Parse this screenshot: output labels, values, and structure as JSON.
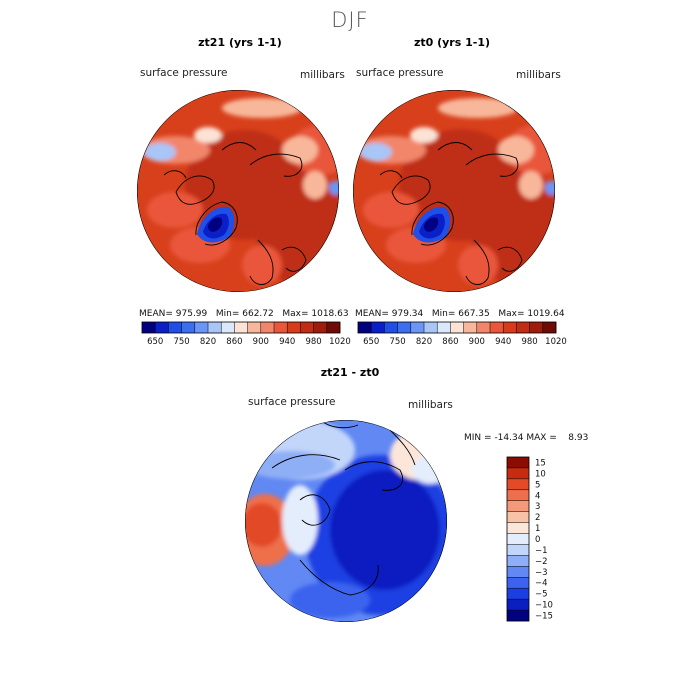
{
  "figure": {
    "title": "DJF"
  },
  "panels": {
    "p1": {
      "title": "zt21 (yrs 1-1)",
      "left_label": "surface pressure",
      "right_label": "millibars",
      "mean_label": "MEAN=",
      "mean": "975.99",
      "min_label": "Min=",
      "min": "662.72",
      "max_label": "Max=",
      "max": "1018.63"
    },
    "p2": {
      "title": "zt0 (yrs 1-1)",
      "left_label": "surface pressure",
      "right_label": "millibars",
      "mean_label": "MEAN=",
      "mean": "979.34",
      "min_label": "Min=",
      "min": "667.35",
      "max_label": "Max=",
      "max": "1019.64"
    },
    "p3": {
      "title": "zt21 - zt0",
      "left_label": "surface pressure",
      "right_label": "millibars",
      "min_label": "MIN =",
      "min": "-14.34",
      "max_label": "MAX =",
      "max": "8.93"
    }
  },
  "colors": {
    "abs_scale": [
      "#000080",
      "#0a1fc7",
      "#1f4fe6",
      "#3c6ff0",
      "#6b96f5",
      "#a8c6f7",
      "#dbe7fb",
      "#fce3d5",
      "#f8b79a",
      "#f2866a",
      "#e9563a",
      "#d83b1a",
      "#c02d14",
      "#9e1c0a",
      "#6e0b04"
    ],
    "diff_scale": [
      "#000080",
      "#0b1ec0",
      "#1a3fe3",
      "#3b63ee",
      "#6188f3",
      "#8eaef6",
      "#c2d6fa",
      "#e4edfc",
      "#fce6da",
      "#f8c2a6",
      "#f49a78",
      "#ee6f4b",
      "#e24a28",
      "#c82c10",
      "#8c0c02"
    ]
  },
  "chart_data": [
    {
      "type": "heatmap",
      "title": "zt21 (yrs 1-1)",
      "subtitle": "DJF",
      "variable": "surface pressure",
      "units": "millibars",
      "projection": "north polar stereographic",
      "stats": {
        "mean": 975.99,
        "min": 662.72,
        "max": 1018.63
      },
      "colorbar_ticks": [
        650,
        750,
        820,
        860,
        900,
        940,
        980,
        1020
      ],
      "colorbar_tick_labels": [
        "650",
        "750",
        "820",
        "860",
        "900",
        "940",
        "980",
        "1020"
      ]
    },
    {
      "type": "heatmap",
      "title": "zt0 (yrs 1-1)",
      "subtitle": "DJF",
      "variable": "surface pressure",
      "units": "millibars",
      "projection": "north polar stereographic",
      "stats": {
        "mean": 979.34,
        "min": 667.35,
        "max": 1019.64
      },
      "colorbar_ticks": [
        650,
        750,
        820,
        860,
        900,
        940,
        980,
        1020
      ],
      "colorbar_tick_labels": [
        "650",
        "750",
        "820",
        "860",
        "900",
        "940",
        "980",
        "1020"
      ]
    },
    {
      "type": "heatmap",
      "title": "zt21 - zt0",
      "variable": "surface pressure",
      "units": "millibars",
      "projection": "north polar stereographic",
      "stats": {
        "min": -14.34,
        "max": 8.93
      },
      "colorbar_ticks": [
        15,
        10,
        5,
        4,
        3,
        2,
        1,
        0,
        -1,
        -2,
        -3,
        -4,
        -5,
        -10,
        -15
      ],
      "colorbar_tick_labels": [
        "15",
        "10",
        "5",
        "4",
        "3",
        "2",
        "1",
        "0",
        "−1",
        "−2",
        "−3",
        "−4",
        "−5",
        "−10",
        "−15"
      ]
    }
  ]
}
